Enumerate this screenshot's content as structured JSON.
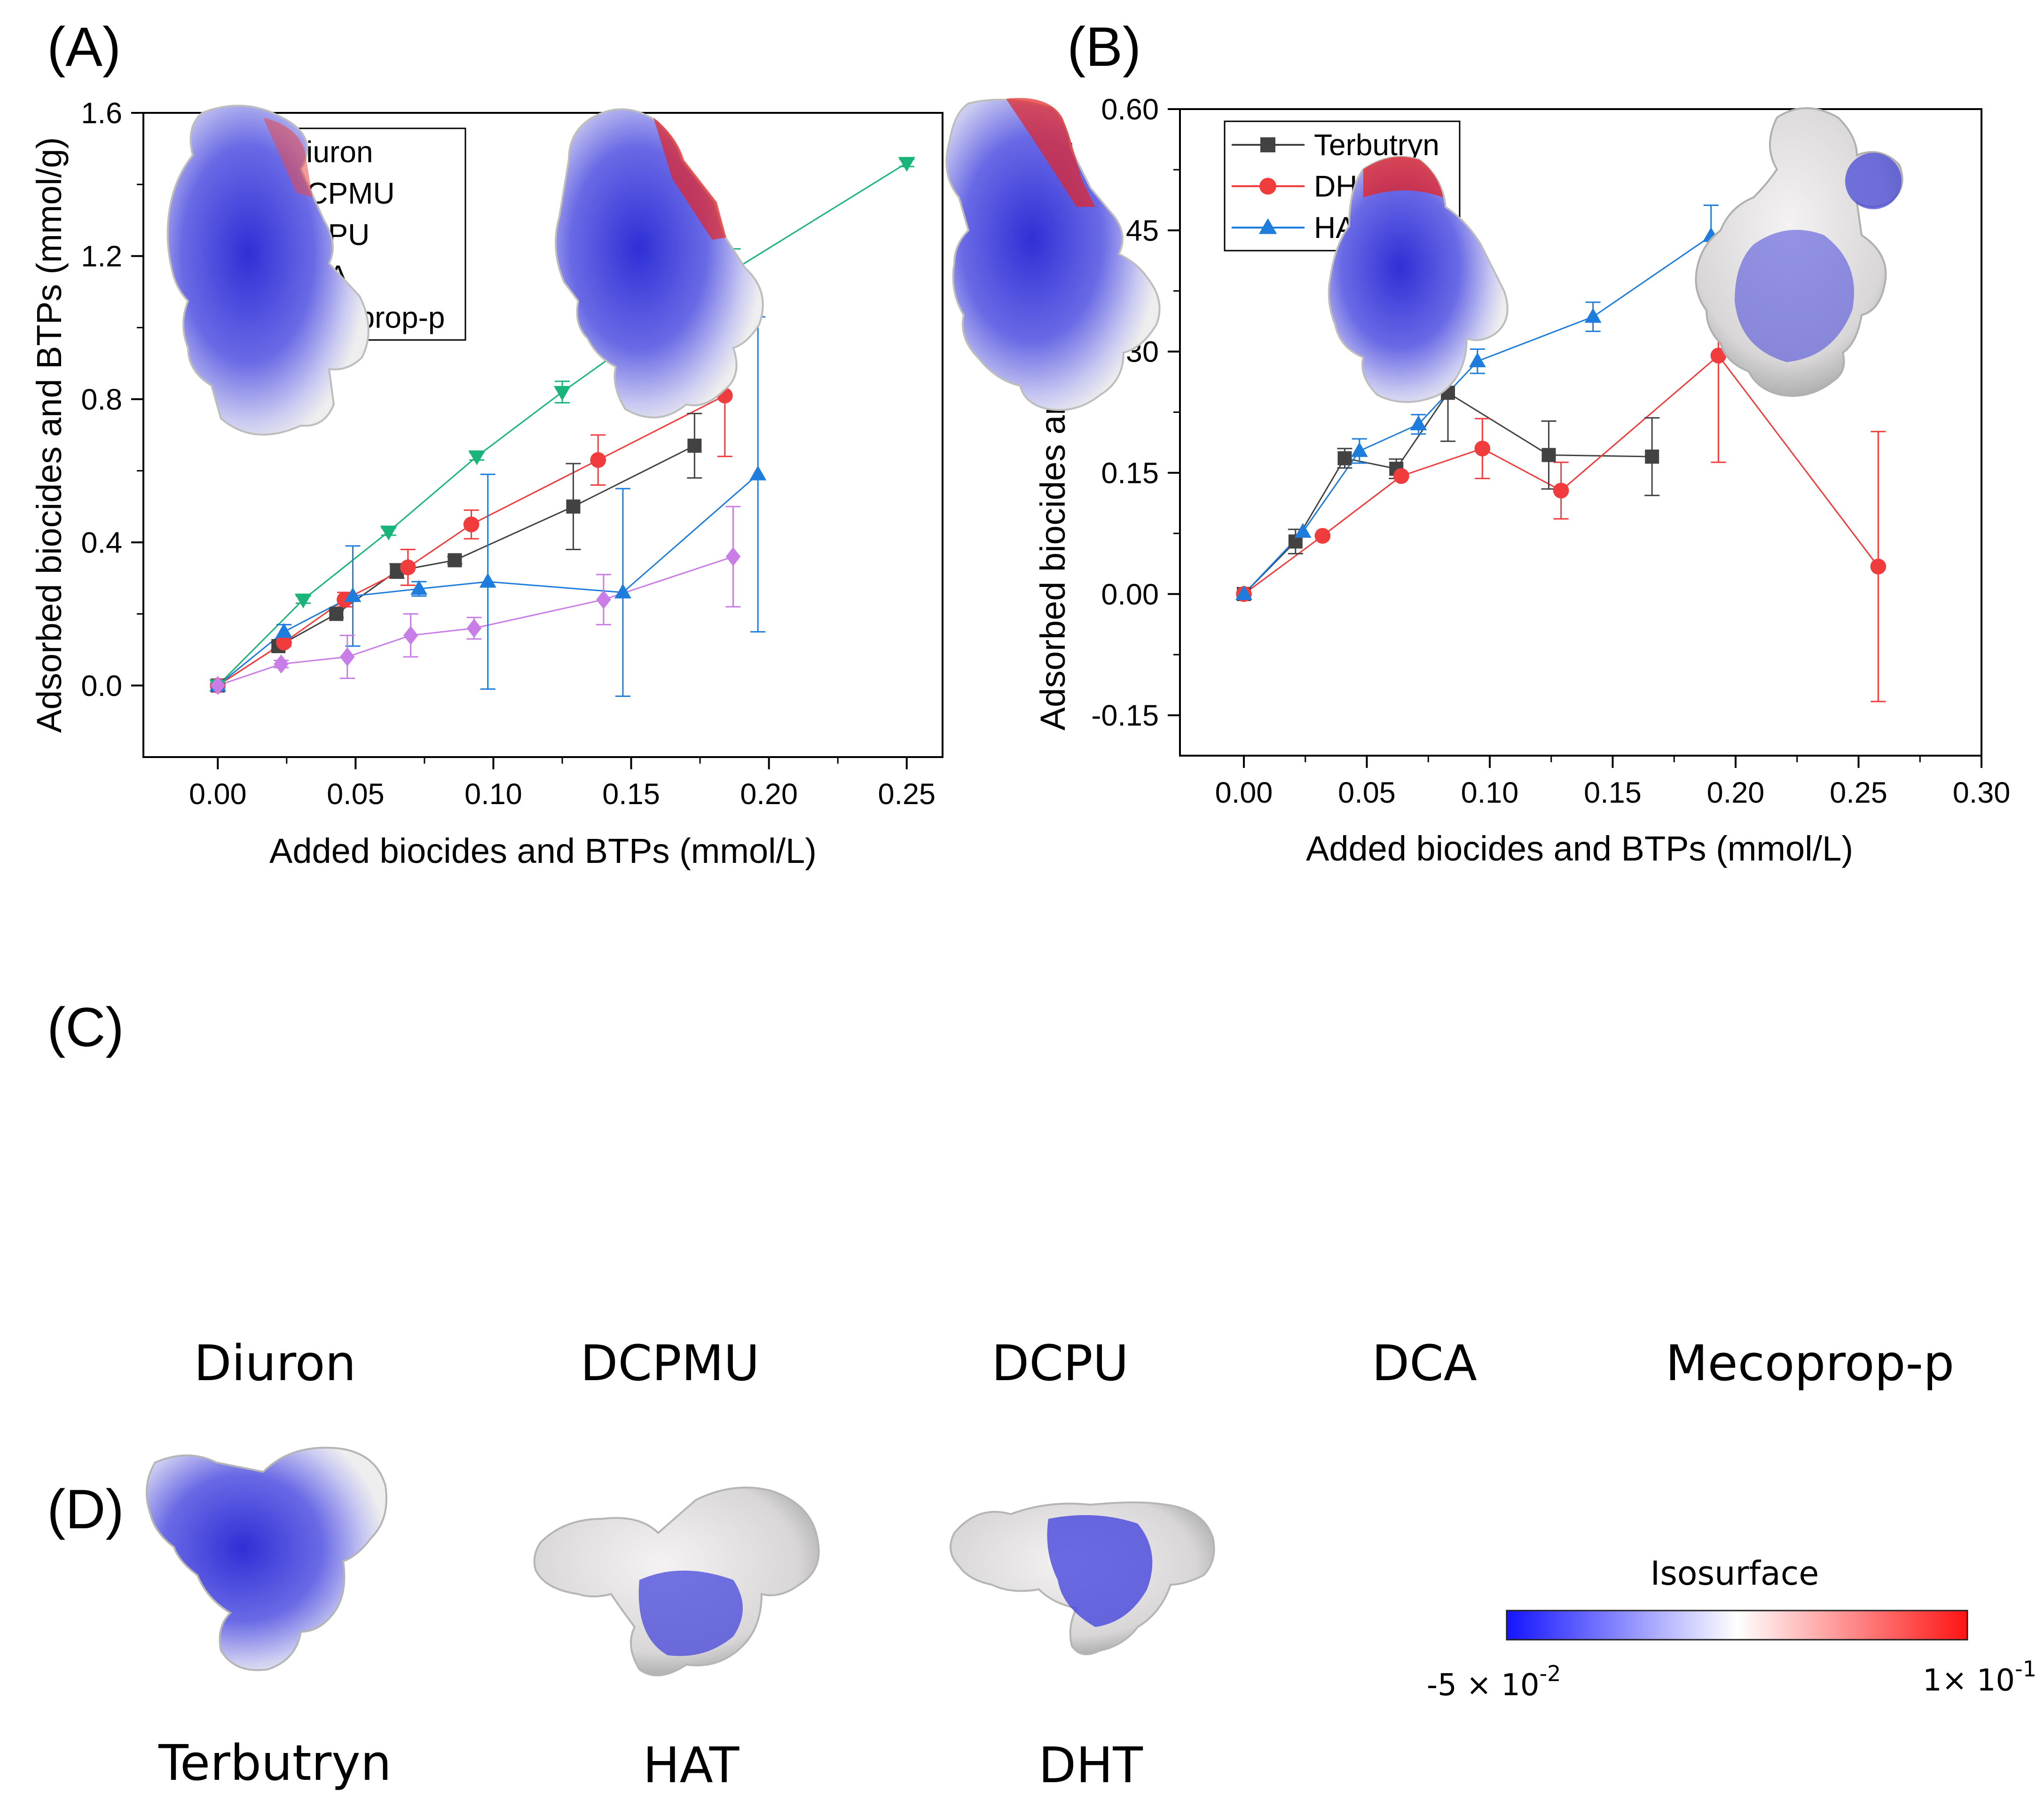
{
  "panel_labels": {
    "A": "(A)",
    "B": "(B)",
    "C": "(C)",
    "D": "(D)"
  },
  "chart_data": [
    {
      "id": "A",
      "type": "line",
      "xlabel": "Added biocides and BTPs (mmol/L)",
      "ylabel": "Adsorbed biocides and BTPs (mmol/g)",
      "xlim": [
        -0.027,
        0.263
      ],
      "ylim": [
        -0.2,
        1.6
      ],
      "xticks": [
        0.0,
        0.05,
        0.1,
        0.15,
        0.2,
        0.25
      ],
      "xtick_labels": [
        "0.00",
        "0.05",
        "0.10",
        "0.15",
        "0.20",
        "0.25"
      ],
      "yticks": [
        0.0,
        0.4,
        0.8,
        1.2,
        1.6
      ],
      "ytick_labels": [
        "0.0",
        "0.4",
        "0.8",
        "1.2",
        "1.6"
      ],
      "legend_position": "top-left",
      "series": [
        {
          "name": "Diuron",
          "color": "#424242",
          "marker": "square",
          "x": [
            0,
            0.022,
            0.043,
            0.065,
            0.086,
            0.129,
            0.173
          ],
          "y": [
            0,
            0.11,
            0.2,
            0.32,
            0.35,
            0.5,
            0.67
          ],
          "err": [
            0,
            0.01,
            0.01,
            0.02,
            0.01,
            0.12,
            0.09
          ]
        },
        {
          "name": "DCPMU",
          "color": "#f03c3c",
          "marker": "circle",
          "x": [
            0,
            0.024,
            0.046,
            0.069,
            0.092,
            0.138,
            0.184
          ],
          "y": [
            0,
            0.12,
            0.24,
            0.33,
            0.45,
            0.63,
            0.81
          ],
          "err": [
            0,
            0.01,
            0.02,
            0.05,
            0.04,
            0.07,
            0.17
          ]
        },
        {
          "name": "DCPU",
          "color": "#1e7ddc",
          "marker": "triangle-up",
          "x": [
            0,
            0.024,
            0.049,
            0.073,
            0.098,
            0.147,
            0.196
          ],
          "y": [
            0,
            0.15,
            0.25,
            0.27,
            0.29,
            0.26,
            0.59
          ],
          "err": [
            0,
            0.02,
            0.14,
            0.02,
            0.3,
            0.29,
            0.44
          ]
        },
        {
          "name": "DCA",
          "color": "#19b47a",
          "marker": "triangle-down",
          "x": [
            0,
            0.031,
            0.062,
            0.094,
            0.125,
            0.187,
            0.25
          ],
          "y": [
            0,
            0.24,
            0.43,
            0.64,
            0.82,
            1.16,
            1.46
          ],
          "err": [
            0,
            0.01,
            0.01,
            0.01,
            0.03,
            0.06,
            0.01
          ]
        },
        {
          "name": "Mecoprop-p",
          "color": "#c97de6",
          "marker": "diamond",
          "x": [
            0,
            0.023,
            0.047,
            0.07,
            0.093,
            0.14,
            0.187
          ],
          "y": [
            0,
            0.06,
            0.08,
            0.14,
            0.16,
            0.24,
            0.36
          ],
          "err": [
            0,
            0.01,
            0.06,
            0.06,
            0.03,
            0.07,
            0.14
          ]
        }
      ]
    },
    {
      "id": "B",
      "type": "line",
      "xlabel": "Added biocides and BTPs (mmol/L)",
      "ylabel": "Adsorbed biocides and BTPs (mmol/g)",
      "xlim": [
        -0.026,
        0.3
      ],
      "ylim": [
        -0.2,
        0.6
      ],
      "xticks": [
        0.0,
        0.05,
        0.1,
        0.15,
        0.2,
        0.25,
        0.3
      ],
      "xtick_labels": [
        "0.00",
        "0.05",
        "0.10",
        "0.15",
        "0.20",
        "0.25",
        "0.30"
      ],
      "yticks": [
        -0.15,
        0.0,
        0.15,
        0.3,
        0.45,
        0.6
      ],
      "ytick_labels": [
        "-0.15",
        "0.00",
        "0.15",
        "0.30",
        "0.45",
        "0.60"
      ],
      "legend_position": "top-left",
      "series": [
        {
          "name": "Terbutryn",
          "color": "#424242",
          "marker": "square",
          "x": [
            0,
            0.021,
            0.041,
            0.062,
            0.083,
            0.124,
            0.166
          ],
          "y": [
            0,
            0.065,
            0.168,
            0.155,
            0.249,
            0.172,
            0.17
          ],
          "err": [
            0,
            0.015,
            0.012,
            0.012,
            0.06,
            0.042,
            0.048
          ]
        },
        {
          "name": "DHT",
          "color": "#f03c3c",
          "marker": "circle",
          "x": [
            0,
            0.032,
            0.064,
            0.097,
            0.129,
            0.193,
            0.258
          ],
          "y": [
            0,
            0.072,
            0.146,
            0.18,
            0.128,
            0.295,
            0.034
          ],
          "err": [
            0,
            0.0,
            0.0,
            0.037,
            0.035,
            0.132,
            0.167
          ]
        },
        {
          "name": "HAT",
          "color": "#1e7ddc",
          "marker": "triangle-up",
          "x": [
            0,
            0.024,
            0.047,
            0.071,
            0.095,
            0.142,
            0.19
          ],
          "y": [
            0,
            0.077,
            0.177,
            0.21,
            0.288,
            0.343,
            0.443
          ],
          "err": [
            0,
            0.0,
            0.015,
            0.012,
            0.015,
            0.018,
            0.038
          ]
        }
      ]
    }
  ],
  "molecules_c": [
    "Diuron",
    "DCPMU",
    "DCPU",
    "DCA",
    "Mecoprop-p"
  ],
  "molecules_d": [
    "Terbutryn",
    "HAT",
    "DHT"
  ],
  "isosurface": {
    "title": "Isosurface",
    "min_label": "-5 × 10",
    "min_exp": "-2",
    "max_label": "1× 10",
    "max_exp": "-1",
    "colors": [
      "#1414ff",
      "#ffffff",
      "#ff1414"
    ]
  },
  "mol_colors": {
    "positive": "#3c3cdc",
    "neutral": "#e8e6e6",
    "negative": "#e62323",
    "atom": "#c8c8c8"
  }
}
